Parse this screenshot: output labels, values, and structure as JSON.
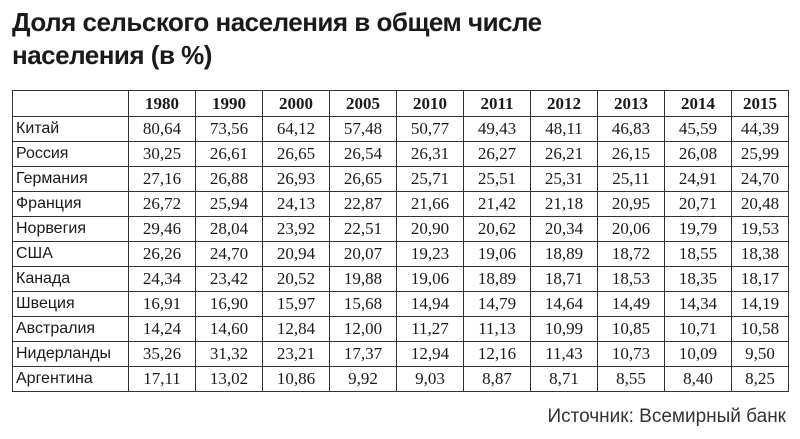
{
  "header": {
    "title_line1": "Доля сельского населения в общем числе",
    "title_line2": "населения (в %)"
  },
  "table": {
    "columns": [
      "1980",
      "1990",
      "2000",
      "2005",
      "2010",
      "2011",
      "2012",
      "2013",
      "2014",
      "2015"
    ],
    "rows": [
      [
        "Китай",
        "80,64",
        "73,56",
        "64,12",
        "57,48",
        "50,77",
        "49,43",
        "48,11",
        "46,83",
        "45,59",
        "44,39"
      ],
      [
        "Россия",
        "30,25",
        "26,61",
        "26,65",
        "26,54",
        "26,31",
        "26,27",
        "26,21",
        "26,15",
        "26,08",
        "25,99"
      ],
      [
        "Германия",
        "27,16",
        "26,88",
        "26,93",
        "26,65",
        "25,71",
        "25,51",
        "25,31",
        "25,11",
        "24,91",
        "24,70"
      ],
      [
        "Франция",
        "26,72",
        "25,94",
        "24,13",
        "22,87",
        "21,66",
        "21,42",
        "21,18",
        "20,95",
        "20,71",
        "20,48"
      ],
      [
        "Норвегия",
        "29,46",
        "28,04",
        "23,92",
        "22,51",
        "20,90",
        "20,62",
        "20,34",
        "20,06",
        "19,79",
        "19,53"
      ],
      [
        "США",
        "26,26",
        "24,70",
        "20,94",
        "20,07",
        "19,23",
        "19,06",
        "18,89",
        "18,72",
        "18,55",
        "18,38"
      ],
      [
        "Канада",
        "24,34",
        "23,42",
        "20,52",
        "19,88",
        "19,06",
        "18,89",
        "18,71",
        "18,53",
        "18,35",
        "18,17"
      ],
      [
        "Швеция",
        "16,91",
        "16,90",
        "15,97",
        "15,68",
        "14,94",
        "14,79",
        "14,64",
        "14,49",
        "14,34",
        "14,19"
      ],
      [
        "Австралия",
        "14,24",
        "14,60",
        "12,84",
        "12,00",
        "11,27",
        "11,13",
        "10,99",
        "10,85",
        "10,71",
        "10,58"
      ],
      [
        "Нидерланды",
        "35,26",
        "31,32",
        "23,21",
        "17,37",
        "12,94",
        "12,16",
        "11,43",
        "10,73",
        "10,09",
        "9,50"
      ],
      [
        "Аргентина",
        "17,11",
        "13,02",
        "10,86",
        "9,92",
        "9,03",
        "8,87",
        "8,71",
        "8,55",
        "8,40",
        "8,25"
      ]
    ]
  },
  "footer": {
    "source": "Источник: Всемирный банк"
  }
}
